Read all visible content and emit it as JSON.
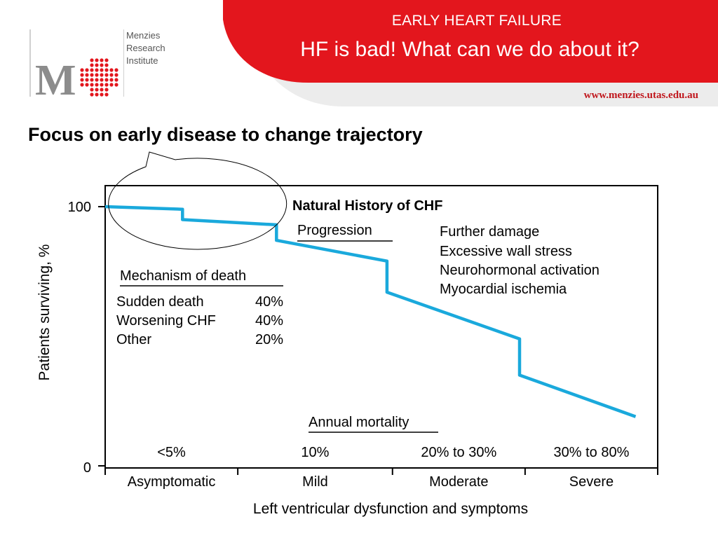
{
  "header": {
    "title": "EARLY HEART FAILURE",
    "subtitle": "HF is bad! What can we do about it?",
    "url": "www.menzies.utas.edu.au",
    "logo": {
      "letter": "M",
      "name_lines": [
        "Menzies",
        "Research",
        "Institute"
      ]
    },
    "colors": {
      "brand_red": "#e3161d",
      "logo_grey": "#8c8c8c"
    }
  },
  "slide": {
    "heading": "Focus on early disease to change trajectory"
  },
  "chart_data": {
    "type": "line",
    "title": "Natural History of CHF",
    "ylabel": "Patients surviving, %",
    "xlabel": "Left ventricular dysfunction and symptoms",
    "ylim": [
      0,
      100
    ],
    "yticks": [
      "0",
      "100"
    ],
    "xlim": [
      0,
      100
    ],
    "categories": [
      "Asymptomatic",
      "Mild",
      "Moderate",
      "Severe"
    ],
    "category_bounds": [
      0,
      24,
      52,
      76,
      100
    ],
    "annual_mortality_label": "Annual mortality",
    "annual_mortality": [
      "<5%",
      "10%",
      "20% to 30%",
      "30% to 80%"
    ],
    "series": [
      {
        "color": "#1aa9dc",
        "points": [
          [
            0,
            100
          ],
          [
            14,
            99
          ],
          [
            14,
            95
          ],
          [
            31,
            93
          ],
          [
            31,
            87
          ],
          [
            51,
            79
          ],
          [
            51,
            67
          ],
          [
            75,
            49
          ],
          [
            75,
            35
          ],
          [
            96,
            19
          ]
        ]
      }
    ],
    "progression": {
      "label": "Progression",
      "items": [
        "Further damage",
        "Excessive wall stress",
        "Neurohormonal activation",
        "Myocardial ischemia"
      ]
    },
    "mechanism": {
      "label": "Mechanism of death",
      "rows": [
        {
          "cause": "Sudden death",
          "pct": "40%"
        },
        {
          "cause": "Worsening CHF",
          "pct": "40%"
        },
        {
          "cause": "Other",
          "pct": "20%"
        }
      ]
    },
    "highlight": "early-disease ellipse callout"
  }
}
